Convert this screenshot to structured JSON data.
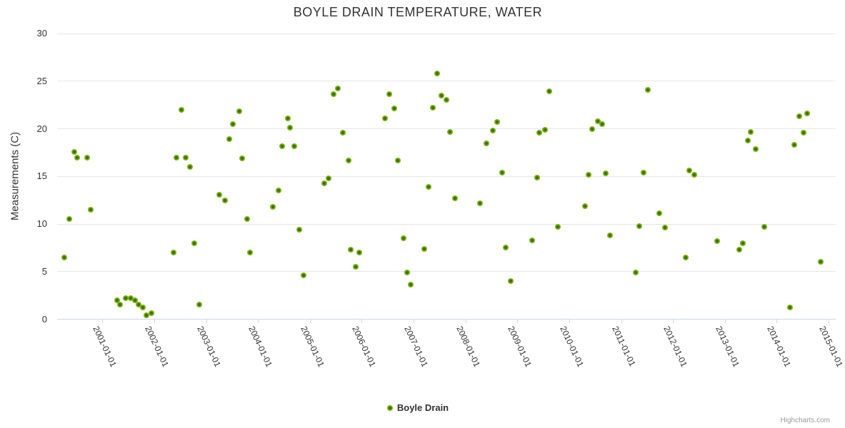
{
  "title": "BOYLE DRAIN TEMPERATURE, WATER",
  "y_axis": {
    "title": "Measurements (C)",
    "ticks": [
      0,
      5,
      10,
      15,
      20,
      25,
      30
    ]
  },
  "x_axis": {
    "labels": [
      "2001-01-01",
      "2002-01-01",
      "2003-01-01",
      "2004-01-01",
      "2005-01-01",
      "2006-01-01",
      "2007-01-01",
      "2008-01-01",
      "2009-01-01",
      "2010-01-01",
      "2011-01-01",
      "2012-01-01",
      "2013-01-01",
      "2014-01-01",
      "2015-01-01"
    ]
  },
  "legend": {
    "label": "Boyle Drain"
  },
  "credits": "Highcharts.com",
  "colors": {
    "marker_outer": "#79b30e",
    "marker_inner": "#416f10",
    "grid": "#e6e6e6",
    "axis_line": "#ccd6eb",
    "text": "#333333",
    "credits": "#999999"
  },
  "chart_data": {
    "type": "scatter",
    "title": "BOYLE DRAIN TEMPERATURE, WATER",
    "xlabel": "",
    "ylabel": "Measurements (C)",
    "ylim": [
      0,
      30
    ],
    "xlim": [
      2000.13,
      2015.13
    ],
    "grid": true,
    "legend_position": "bottom",
    "x_unit": "decimal_year",
    "series": [
      {
        "name": "Boyle Drain",
        "points": [
          [
            2000.27,
            6.5
          ],
          [
            2000.36,
            10.5
          ],
          [
            2000.46,
            17.6
          ],
          [
            2000.52,
            17.0
          ],
          [
            2000.71,
            17.0
          ],
          [
            2000.78,
            11.5
          ],
          [
            2001.29,
            2.0
          ],
          [
            2001.34,
            1.5
          ],
          [
            2001.45,
            2.2
          ],
          [
            2001.54,
            2.2
          ],
          [
            2001.63,
            2.0
          ],
          [
            2001.7,
            1.5
          ],
          [
            2001.78,
            1.2
          ],
          [
            2001.85,
            0.4
          ],
          [
            2001.94,
            0.6
          ],
          [
            2002.37,
            7.0
          ],
          [
            2002.43,
            17.0
          ],
          [
            2002.52,
            22.0
          ],
          [
            2002.61,
            17.0
          ],
          [
            2002.69,
            16.0
          ],
          [
            2002.77,
            8.0
          ],
          [
            2002.87,
            1.5
          ],
          [
            2003.25,
            13.1
          ],
          [
            2003.37,
            12.5
          ],
          [
            2003.45,
            18.9
          ],
          [
            2003.52,
            20.5
          ],
          [
            2003.64,
            21.8
          ],
          [
            2003.7,
            16.9
          ],
          [
            2003.79,
            10.5
          ],
          [
            2003.85,
            7.0
          ],
          [
            2004.29,
            11.8
          ],
          [
            2004.4,
            13.5
          ],
          [
            2004.47,
            18.2
          ],
          [
            2004.57,
            21.1
          ],
          [
            2004.62,
            20.1
          ],
          [
            2004.7,
            18.2
          ],
          [
            2004.8,
            9.4
          ],
          [
            2004.88,
            4.6
          ],
          [
            2005.28,
            14.3
          ],
          [
            2005.36,
            14.8
          ],
          [
            2005.45,
            23.6
          ],
          [
            2005.54,
            24.2
          ],
          [
            2005.63,
            19.6
          ],
          [
            2005.74,
            16.7
          ],
          [
            2005.79,
            7.3
          ],
          [
            2005.88,
            5.5
          ],
          [
            2005.95,
            7.0
          ],
          [
            2006.45,
            21.1
          ],
          [
            2006.53,
            23.6
          ],
          [
            2006.63,
            22.1
          ],
          [
            2006.69,
            16.7
          ],
          [
            2006.8,
            8.5
          ],
          [
            2006.87,
            4.9
          ],
          [
            2006.95,
            3.6
          ],
          [
            2007.21,
            7.4
          ],
          [
            2007.29,
            13.9
          ],
          [
            2007.37,
            22.2
          ],
          [
            2007.46,
            25.8
          ],
          [
            2007.53,
            23.5
          ],
          [
            2007.63,
            23.0
          ],
          [
            2007.7,
            19.7
          ],
          [
            2007.8,
            12.7
          ],
          [
            2008.28,
            12.2
          ],
          [
            2008.4,
            18.5
          ],
          [
            2008.53,
            19.8
          ],
          [
            2008.61,
            20.7
          ],
          [
            2008.7,
            15.4
          ],
          [
            2008.78,
            7.5
          ],
          [
            2008.87,
            4.0
          ],
          [
            2009.29,
            8.3
          ],
          [
            2009.38,
            14.9
          ],
          [
            2009.42,
            19.6
          ],
          [
            2009.53,
            19.9
          ],
          [
            2009.61,
            23.9
          ],
          [
            2009.78,
            9.7
          ],
          [
            2010.3,
            11.9
          ],
          [
            2010.37,
            15.2
          ],
          [
            2010.44,
            20.0
          ],
          [
            2010.55,
            20.8
          ],
          [
            2010.64,
            20.5
          ],
          [
            2010.7,
            15.3
          ],
          [
            2010.79,
            8.8
          ],
          [
            2011.28,
            4.9
          ],
          [
            2011.35,
            9.8
          ],
          [
            2011.43,
            15.4
          ],
          [
            2011.51,
            24.1
          ],
          [
            2011.73,
            11.1
          ],
          [
            2011.85,
            9.6
          ],
          [
            2012.25,
            6.5
          ],
          [
            2012.32,
            15.6
          ],
          [
            2012.41,
            15.2
          ],
          [
            2012.85,
            8.2
          ],
          [
            2013.28,
            7.3
          ],
          [
            2013.35,
            8.0
          ],
          [
            2013.44,
            18.8
          ],
          [
            2013.5,
            19.7
          ],
          [
            2013.6,
            17.9
          ],
          [
            2013.76,
            9.7
          ],
          [
            2014.25,
            1.2
          ],
          [
            2014.34,
            18.3
          ],
          [
            2014.43,
            21.3
          ],
          [
            2014.52,
            19.6
          ],
          [
            2014.59,
            21.6
          ],
          [
            2014.85,
            6.0
          ]
        ]
      }
    ]
  }
}
